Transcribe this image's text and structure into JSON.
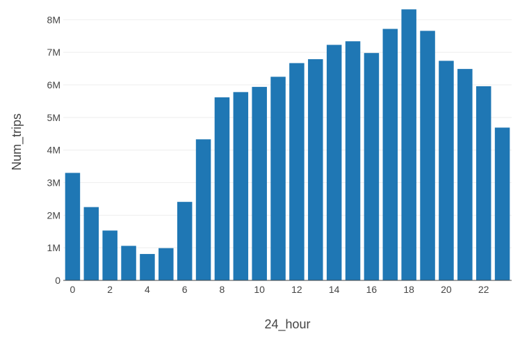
{
  "chart_data": {
    "type": "bar",
    "title": "",
    "xlabel": "24_hour",
    "ylabel": "Num_trips",
    "ylim": [
      0,
      8500000
    ],
    "grid": true,
    "bar_color": "#1f77b4",
    "grid_color": "#eeeeee",
    "x": [
      0,
      1,
      2,
      3,
      4,
      5,
      6,
      7,
      8,
      9,
      10,
      11,
      12,
      13,
      14,
      15,
      16,
      17,
      18,
      19,
      20,
      21,
      22,
      23
    ],
    "values": [
      3300000,
      2250000,
      1530000,
      1060000,
      810000,
      990000,
      2410000,
      4330000,
      5620000,
      5780000,
      5940000,
      6250000,
      6670000,
      6790000,
      7230000,
      7340000,
      6980000,
      7720000,
      8320000,
      7660000,
      6740000,
      6490000,
      5960000,
      4690000
    ],
    "x_ticks": [
      {
        "value": 0,
        "label": "0"
      },
      {
        "value": 2,
        "label": "2"
      },
      {
        "value": 4,
        "label": "4"
      },
      {
        "value": 6,
        "label": "6"
      },
      {
        "value": 8,
        "label": "8"
      },
      {
        "value": 10,
        "label": "10"
      },
      {
        "value": 12,
        "label": "12"
      },
      {
        "value": 14,
        "label": "14"
      },
      {
        "value": 16,
        "label": "16"
      },
      {
        "value": 18,
        "label": "18"
      },
      {
        "value": 20,
        "label": "20"
      },
      {
        "value": 22,
        "label": "22"
      }
    ],
    "y_ticks": [
      {
        "value": 0,
        "label": "0"
      },
      {
        "value": 1000000,
        "label": "1M"
      },
      {
        "value": 2000000,
        "label": "2M"
      },
      {
        "value": 3000000,
        "label": "3M"
      },
      {
        "value": 4000000,
        "label": "4M"
      },
      {
        "value": 5000000,
        "label": "5M"
      },
      {
        "value": 6000000,
        "label": "6M"
      },
      {
        "value": 7000000,
        "label": "7M"
      },
      {
        "value": 8000000,
        "label": "8M"
      }
    ]
  }
}
